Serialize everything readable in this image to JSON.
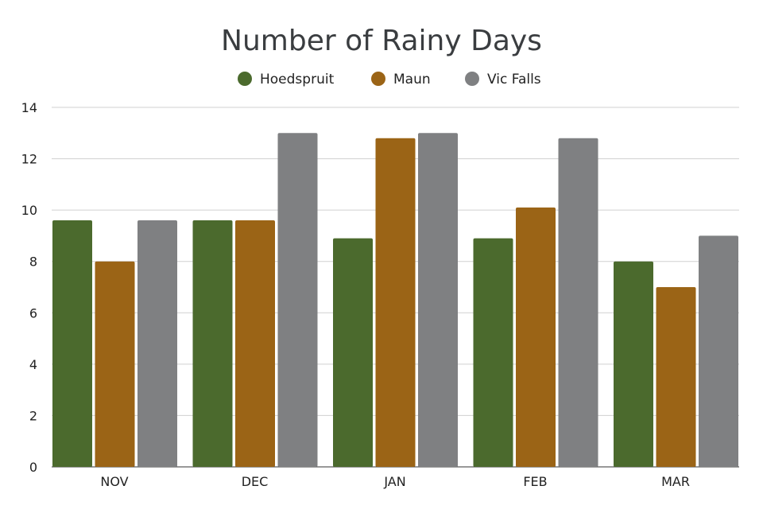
{
  "chart_data": {
    "type": "bar",
    "title": "Number of Rainy Days",
    "xlabel": "",
    "ylabel": "",
    "categories": [
      "NOV",
      "DEC",
      "JAN",
      "FEB",
      "MAR"
    ],
    "series": [
      {
        "name": "Hoedspruit",
        "color": "#4b6a2d",
        "values": [
          9.6,
          9.6,
          8.9,
          8.9,
          8.0
        ]
      },
      {
        "name": "Maun",
        "color": "#9b6416",
        "values": [
          8.0,
          9.6,
          12.8,
          10.1,
          7.0
        ]
      },
      {
        "name": "Vic Falls",
        "color": "#7f8082",
        "values": [
          9.6,
          13.0,
          13.0,
          12.8,
          9.0
        ]
      }
    ],
    "ylim": [
      0,
      14
    ],
    "yticks": [
      "0",
      "2",
      "4",
      "6",
      "8",
      "10",
      "12",
      "14"
    ],
    "grid": true,
    "legend_position": "top-center"
  }
}
